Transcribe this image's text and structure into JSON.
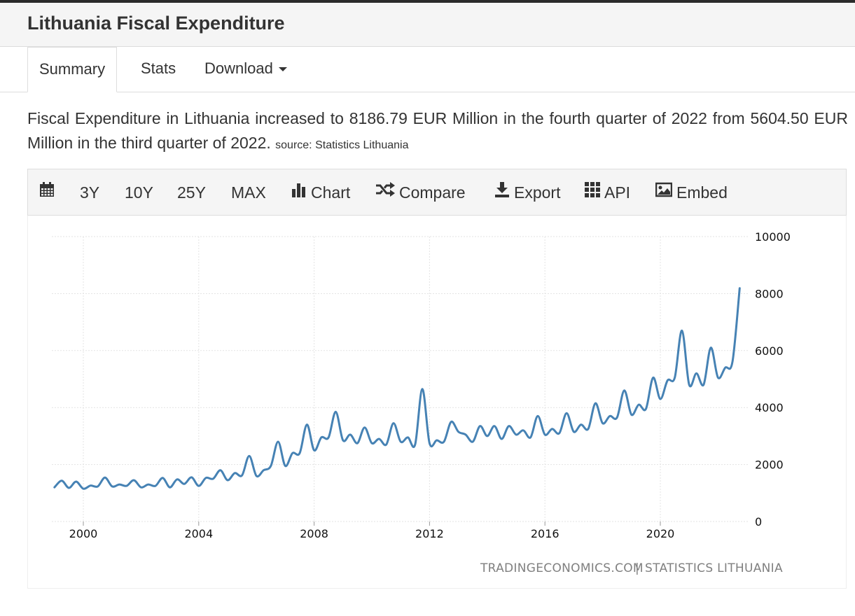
{
  "header": {
    "title": "Lithuania Fiscal Expenditure"
  },
  "tabs": [
    {
      "label": "Summary",
      "active": true
    },
    {
      "label": "Stats",
      "active": false
    },
    {
      "label": "Download",
      "active": false
    }
  ],
  "summary": {
    "text": "Fiscal Expenditure in Lithuania increased to 8186.79 EUR Million in the fourth quarter of 2022 from 5604.50 EUR Million in the third quarter of 2022.",
    "source": "source: Statistics Lithuania"
  },
  "toolbar": {
    "calendar_icon": "calendar-icon",
    "ranges": [
      "3Y",
      "10Y",
      "25Y",
      "MAX"
    ],
    "chart": "Chart",
    "compare": "Compare",
    "export": "Export",
    "api": "API",
    "embed": "Embed"
  },
  "credit": {
    "left": "TRADINGECONOMICS.COM",
    "separator": "|",
    "right": "STATISTICS LITHUANIA"
  },
  "colors": {
    "line": "#4682b4",
    "grid": "#e3e3e3"
  },
  "chart_data": {
    "type": "line",
    "title": "",
    "xlabel": "",
    "ylabel": "",
    "ylim": [
      0,
      10000
    ],
    "yticks": [
      0,
      2000,
      4000,
      6000,
      8000,
      10000
    ],
    "xticks": [
      2000,
      2004,
      2008,
      2012,
      2016,
      2020
    ],
    "grid": true,
    "x_unit": "quarter",
    "series": [
      {
        "x": [
          "1999Q1",
          "1999Q2",
          "1999Q3",
          "1999Q4",
          "2000Q1",
          "2000Q2",
          "2000Q3",
          "2000Q4",
          "2001Q1",
          "2001Q2",
          "2001Q3",
          "2001Q4",
          "2002Q1",
          "2002Q2",
          "2002Q3",
          "2002Q4",
          "2003Q1",
          "2003Q2",
          "2003Q3",
          "2003Q4",
          "2004Q1",
          "2004Q2",
          "2004Q3",
          "2004Q4",
          "2005Q1",
          "2005Q2",
          "2005Q3",
          "2005Q4",
          "2006Q1",
          "2006Q2",
          "2006Q3",
          "2006Q4",
          "2007Q1",
          "2007Q2",
          "2007Q3",
          "2007Q4",
          "2008Q1",
          "2008Q2",
          "2008Q3",
          "2008Q4",
          "2009Q1",
          "2009Q2",
          "2009Q3",
          "2009Q4",
          "2010Q1",
          "2010Q2",
          "2010Q3",
          "2010Q4",
          "2011Q1",
          "2011Q2",
          "2011Q3",
          "2011Q4",
          "2012Q1",
          "2012Q2",
          "2012Q3",
          "2012Q4",
          "2013Q1",
          "2013Q2",
          "2013Q3",
          "2013Q4",
          "2014Q1",
          "2014Q2",
          "2014Q3",
          "2014Q4",
          "2015Q1",
          "2015Q2",
          "2015Q3",
          "2015Q4",
          "2016Q1",
          "2016Q2",
          "2016Q3",
          "2016Q4",
          "2017Q1",
          "2017Q2",
          "2017Q3",
          "2017Q4",
          "2018Q1",
          "2018Q2",
          "2018Q3",
          "2018Q4",
          "2019Q1",
          "2019Q2",
          "2019Q3",
          "2019Q4",
          "2020Q1",
          "2020Q2",
          "2020Q3",
          "2020Q4",
          "2021Q1",
          "2021Q2",
          "2021Q3",
          "2021Q4",
          "2022Q1",
          "2022Q2",
          "2022Q3",
          "2022Q4"
        ],
        "y": [
          1200,
          1430,
          1180,
          1400,
          1150,
          1260,
          1230,
          1540,
          1230,
          1300,
          1250,
          1450,
          1200,
          1300,
          1250,
          1530,
          1200,
          1480,
          1320,
          1550,
          1250,
          1530,
          1500,
          1800,
          1450,
          1700,
          1620,
          2300,
          1600,
          1800,
          1950,
          2800,
          1950,
          2400,
          2400,
          3400,
          2500,
          2950,
          2950,
          3850,
          2850,
          3050,
          2750,
          3300,
          2750,
          2900,
          2700,
          3450,
          2800,
          2950,
          2700,
          4650,
          2750,
          2850,
          2800,
          3500,
          3150,
          3050,
          2800,
          3350,
          3000,
          3350,
          2900,
          3350,
          3050,
          3200,
          2950,
          3700,
          3050,
          3250,
          3100,
          3800,
          3150,
          3400,
          3250,
          4150,
          3450,
          3700,
          3650,
          4600,
          3750,
          4100,
          3950,
          5050,
          4300,
          4950,
          5050,
          6700,
          4800,
          5200,
          4800,
          6100,
          5050,
          5400,
          5604.5,
          8186.79
        ]
      }
    ]
  }
}
